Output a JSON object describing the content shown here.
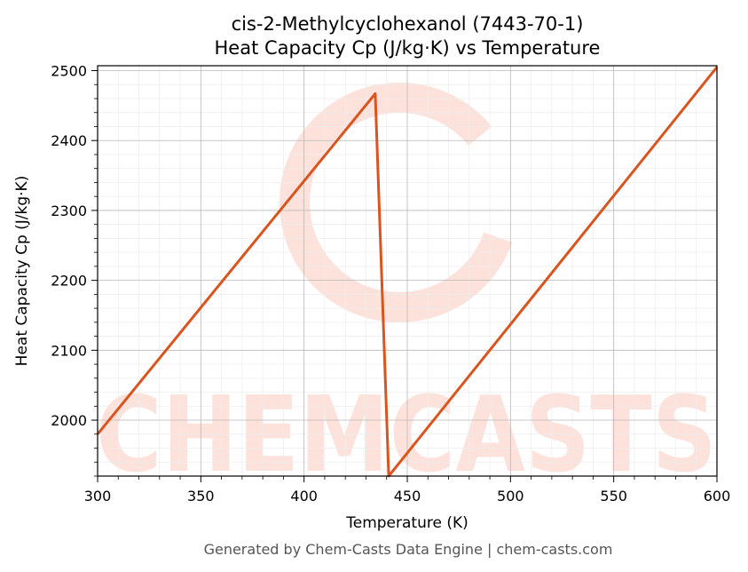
{
  "chart_data": {
    "type": "line",
    "title": "cis-2-Methylcyclohexanol (7443-70-1)",
    "subtitle": "Heat Capacity Cp (J/kg·K) vs Temperature",
    "xlabel": "Temperature (K)",
    "ylabel": "Heat Capacity Cp (J/kg·K)",
    "xlim": [
      300,
      600
    ],
    "ylim": [
      1920,
      2507
    ],
    "x_ticks": [
      300,
      350,
      400,
      450,
      500,
      550,
      600
    ],
    "y_ticks": [
      2000,
      2100,
      2200,
      2300,
      2400,
      2500
    ],
    "grid": true,
    "series": [
      {
        "color": "#d9541e",
        "x": [
          300,
          434.5,
          441,
          600
        ],
        "y": [
          1980,
          2467,
          1920,
          2505
        ]
      }
    ]
  },
  "watermark": {
    "text": "CHEMCASTS",
    "color": "#fde2dc"
  },
  "footer": "Generated by Chem-Casts Data Engine | chem-casts.com"
}
